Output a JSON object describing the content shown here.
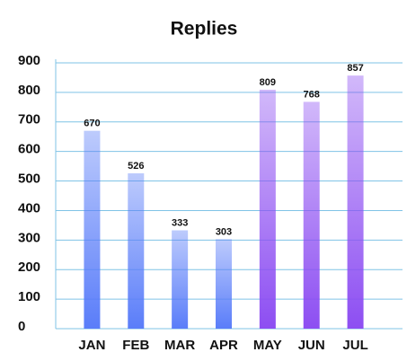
{
  "chart_data": {
    "type": "bar",
    "title": "Replies",
    "categories": [
      "JAN",
      "FEB",
      "MAR",
      "APR",
      "MAY",
      "JUN",
      "JUL"
    ],
    "values": [
      670,
      526,
      333,
      303,
      809,
      768,
      857
    ],
    "colors": [
      "#5a7df9",
      "#5a7df9",
      "#5a7df9",
      "#5a7df9",
      "#8d4ef2",
      "#8d4ef2",
      "#8d4ef2"
    ],
    "ylim": [
      0,
      900
    ],
    "yticks": [
      0,
      100,
      200,
      300,
      400,
      500,
      600,
      700,
      800,
      900
    ],
    "grid": true
  }
}
